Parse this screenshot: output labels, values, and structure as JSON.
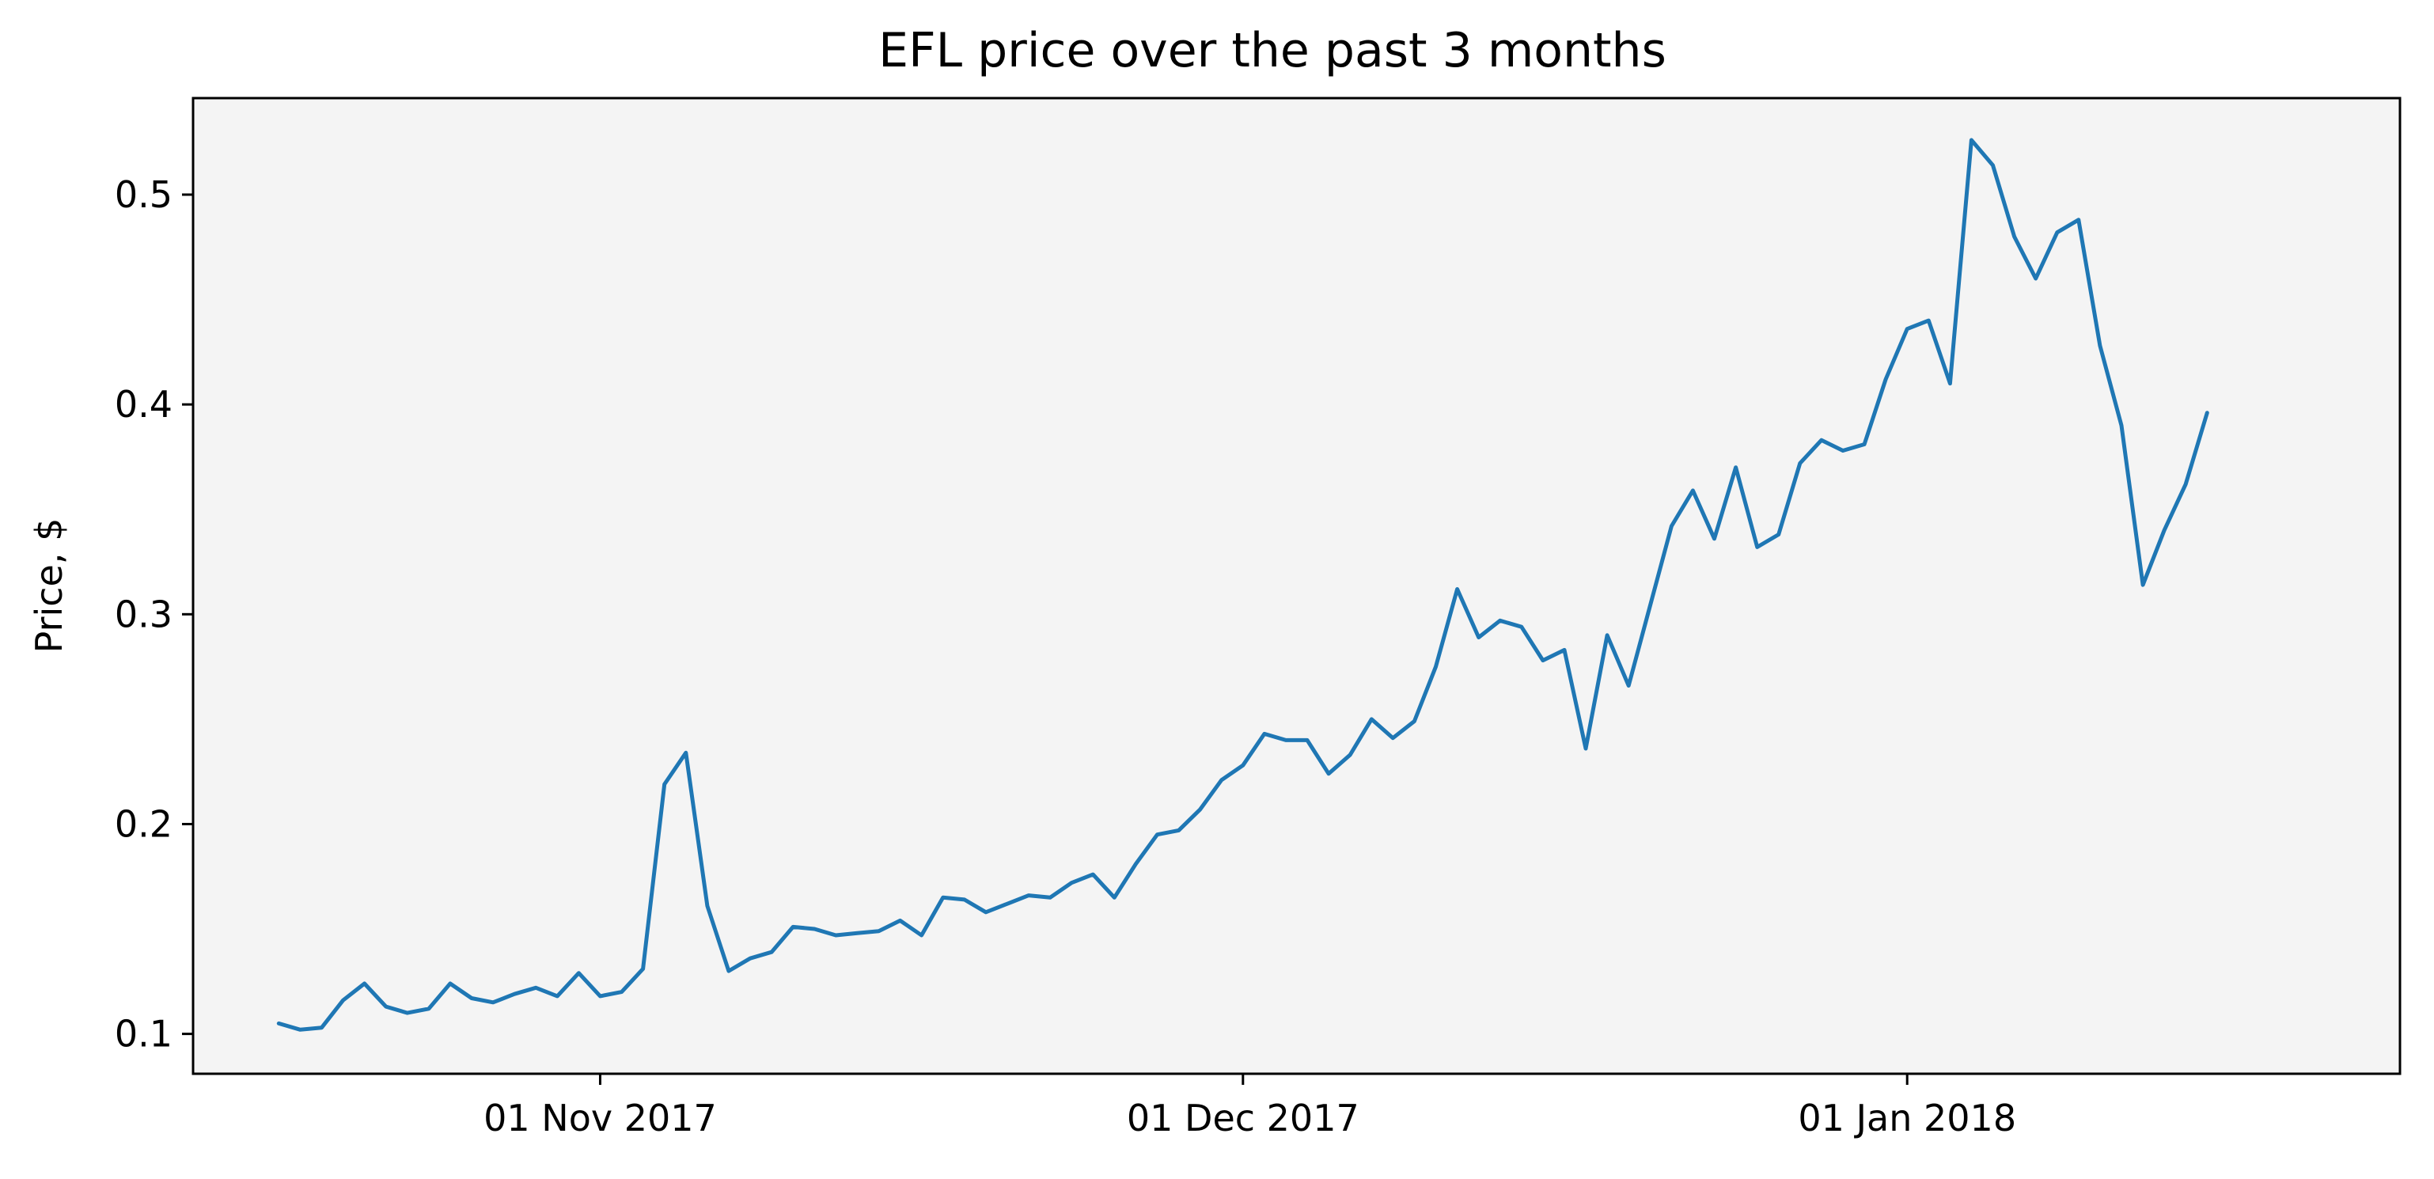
{
  "chart_data": {
    "type": "line",
    "title": "EFL price over the past 3 months",
    "xlabel": "",
    "ylabel": "Price, $",
    "x_start": "2017-10-17",
    "x_step_days": 1,
    "xlim": [
      "2017-10-13",
      "2018-01-24"
    ],
    "ylim": [
      0.081,
      0.546
    ],
    "yticks": [
      0.1,
      0.2,
      0.3,
      0.4,
      0.5
    ],
    "ytick_labels": [
      "0.1",
      "0.2",
      "0.3",
      "0.4",
      "0.5"
    ],
    "xticks": [
      {
        "date": "2017-11-01",
        "label": "01 Nov 2017"
      },
      {
        "date": "2017-12-01",
        "label": "01 Dec 2017"
      },
      {
        "date": "2018-01-01",
        "label": "01 Jan 2018"
      }
    ],
    "grid": false,
    "plot_background": "#f4f4f4",
    "line_color": "#1f77b4",
    "series": [
      {
        "values": [
          0.105,
          0.102,
          0.103,
          0.116,
          0.124,
          0.113,
          0.11,
          0.112,
          0.124,
          0.117,
          0.115,
          0.119,
          0.122,
          0.118,
          0.129,
          0.118,
          0.12,
          0.131,
          0.219,
          0.234,
          0.161,
          0.13,
          0.136,
          0.139,
          0.151,
          0.15,
          0.147,
          0.148,
          0.149,
          0.154,
          0.147,
          0.165,
          0.164,
          0.158,
          0.162,
          0.166,
          0.165,
          0.172,
          0.176,
          0.165,
          0.181,
          0.195,
          0.197,
          0.207,
          0.221,
          0.228,
          0.243,
          0.24,
          0.24,
          0.224,
          0.233,
          0.25,
          0.241,
          0.249,
          0.275,
          0.312,
          0.289,
          0.297,
          0.294,
          0.278,
          0.283,
          0.236,
          0.29,
          0.266,
          0.304,
          0.342,
          0.359,
          0.336,
          0.37,
          0.332,
          0.338,
          0.372,
          0.383,
          0.378,
          0.381,
          0.412,
          0.436,
          0.44,
          0.41,
          0.526,
          0.514,
          0.48,
          0.46,
          0.482,
          0.488,
          0.428,
          0.39,
          0.314,
          0.34,
          0.362,
          0.396
        ]
      }
    ]
  }
}
